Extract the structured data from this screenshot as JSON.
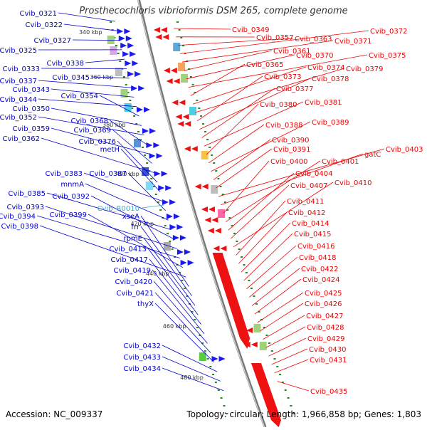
{
  "header": {
    "title": "Prosthecochloris vibrioformis DSM 265, complete genome"
  },
  "footer": {
    "accession": "Accession: NC_009337",
    "summary": "Topology: circular; Length: 1,966,858 bp; Genes: 1,803"
  },
  "ticks": [
    "340 kbp",
    "360 kbp",
    "380 kbp",
    "400 kbp",
    "420 kbp",
    "440 kbp",
    "460 kbp",
    "480 kbp"
  ],
  "colors": {
    "left_genes": "#0000cc",
    "right_genes": "#ee0000",
    "highlight": "#33aadd",
    "backbone": "#888888",
    "ticks": "#228822"
  },
  "left_labels": [
    "Cvib_0321",
    "Cvib_0322",
    "Cvib_0327",
    "Cvib_0325",
    "Cvib_0338",
    "Cvib_0333",
    "Cvib_0345",
    "Cvib_0337",
    "Cvib_0343",
    "Cvib_0344",
    "Cvib_0354",
    "Cvib_0350",
    "Cvib_0352",
    "Cvib_0368",
    "Cvib_0359",
    "Cvib_0369",
    "Cvib_0362",
    "Cvib_0376",
    "metH",
    "Cvib_0383",
    "Cvib_0387",
    "mnmA",
    "Cvib_0385",
    "Cvib_0392",
    "Cvib_0393",
    "Cvib_0394",
    "Cvib_0399",
    "Cvib_0398",
    "xseA",
    "frr",
    "rpmE",
    "Cvib_0413",
    "Cvib_0417",
    "Cvib_0419",
    "Cvib_0420",
    "Cvib_0421",
    "thyX",
    "Cvib_0432",
    "Cvib_0433",
    "Cvib_0434"
  ],
  "highlight_label": "Cvib_R0010",
  "right_labels": [
    "Cvib_0349",
    "Cvib_0357",
    "Cvib_0363",
    "Cvib_0372",
    "Cvib_0371",
    "Cvib_0361",
    "Cvib_0370",
    "Cvib_0375",
    "Cvib_0365",
    "Cvib_0374",
    "Cvib_0379",
    "Cvib_0373",
    "Cvib_0378",
    "Cvib_0377",
    "Cvib_0381",
    "Cvib_0380",
    "Cvib_0388",
    "Cvib_0389",
    "Cvib_0390",
    "Cvib_0391",
    "Cvib_0403",
    "gatC",
    "Cvib_0400",
    "Cvib_0401",
    "Cvib_0404",
    "Cvib_0407",
    "Cvib_0410",
    "Cvib_0411",
    "Cvib_0412",
    "Cvib_0414",
    "Cvib_0415",
    "Cvib_0416",
    "Cvib_0418",
    "Cvib_0422",
    "Cvib_0424",
    "Cvib_0425",
    "Cvib_0426",
    "Cvib_0427",
    "Cvib_0428",
    "Cvib_0429",
    "Cvib_0430",
    "Cvib_0431",
    "Cvib_0435"
  ]
}
